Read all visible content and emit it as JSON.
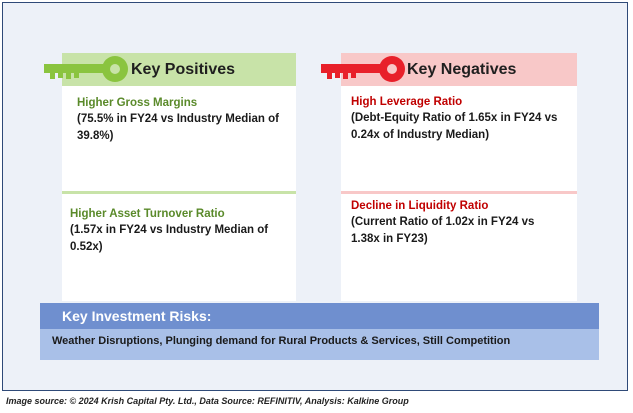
{
  "positives": {
    "header": "Key Positives",
    "items": [
      {
        "title": "Higher Gross Margins",
        "body_line1": "(75.5% in FY24 vs Industry Median of",
        "body_line2": "39.8%)"
      },
      {
        "title": "Higher Asset Turnover Ratio",
        "body_line1": "(1.57x in FY24 vs Industry Median of",
        "body_line2": "0.52x)"
      }
    ]
  },
  "negatives": {
    "header": "Key Negatives",
    "items": [
      {
        "title": "High Leverage Ratio",
        "body_line1": "(Debt-Equity Ratio of 1.65x in FY24 vs",
        "body_line2": "0.24x of Industry Median)"
      },
      {
        "title": "Decline in Liquidity Ratio",
        "body_line1": "(Current Ratio of 1.02x in FY24 vs",
        "body_line2": "1.38x in FY23)"
      }
    ]
  },
  "risks": {
    "header": "Key Investment Risks:",
    "body": "Weather Disruptions, Plunging demand for Rural Products & Services, Still Competition"
  },
  "footer": "Image source: © 2024 Krish Capital Pty. Ltd., Data Source: REFINITIV, Analysis: Kalkine Group",
  "colors": {
    "positive_green": "#8ac43f",
    "positive_title": "#5a8a2a",
    "negative_red": "#e8202a",
    "negative_title": "#c00000",
    "risk_header_blue": "#6f8fcf",
    "risk_body_blue": "#a9c0e8"
  },
  "icons": [
    "green-key-icon",
    "red-key-icon"
  ]
}
